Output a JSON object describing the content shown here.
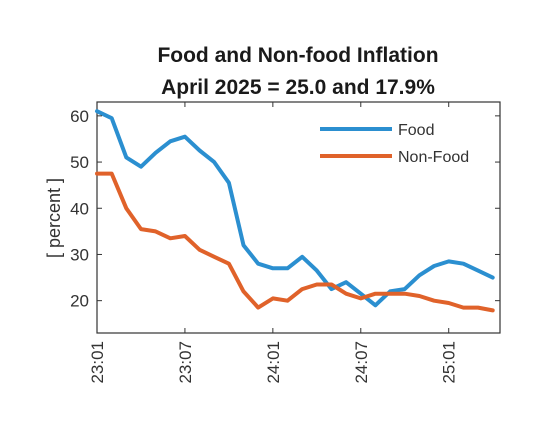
{
  "chart_data": {
    "type": "line",
    "title": [
      "Food and Non-food Inflation",
      "April 2025 = 25.0 and 17.9%"
    ],
    "xlabel": "",
    "ylabel": "[ percent ]",
    "x_tick_labels": [
      "23:01",
      "23:07",
      "24:01",
      "24:07",
      "25:01"
    ],
    "y_ticks": [
      20,
      30,
      40,
      50,
      60
    ],
    "ylim": [
      13,
      63
    ],
    "x_start_month": "23:01",
    "grid": false,
    "legend_position": "top-right",
    "series": [
      {
        "name": "Food",
        "color": "#2b8fd0",
        "values": [
          61,
          59.5,
          51,
          49,
          52,
          54.5,
          55.5,
          52.5,
          50,
          45.5,
          32,
          28,
          27,
          27,
          29.5,
          26.5,
          22.5,
          24,
          21.5,
          19,
          22,
          22.5,
          25.5,
          27.5,
          28.5,
          28,
          26.5,
          25
        ]
      },
      {
        "name": "Non-Food",
        "color": "#e0622a",
        "values": [
          47.5,
          47.5,
          40,
          35.5,
          35,
          33.5,
          34,
          31,
          29.5,
          28,
          22,
          18.5,
          20.5,
          20,
          22.5,
          23.5,
          23.5,
          21.5,
          20.5,
          21.5,
          21.5,
          21.5,
          21,
          20,
          19.5,
          18.5,
          18.5,
          17.9
        ]
      }
    ]
  }
}
